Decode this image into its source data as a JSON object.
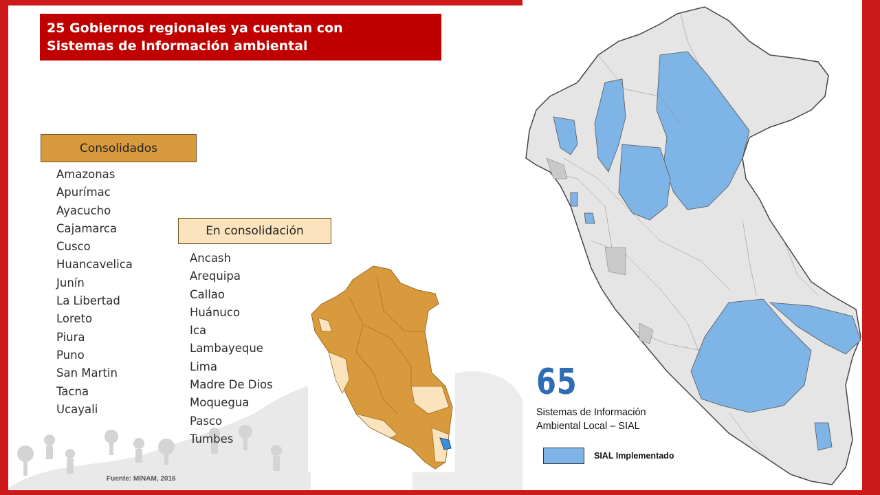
{
  "title": {
    "line1": "25 Gobiernos regionales ya cuentan con",
    "line2": "Sistemas de Información ambiental"
  },
  "consolidados": {
    "label": "Consolidados",
    "items": [
      "Amazonas",
      "Apurímac",
      "Ayacucho",
      "Cajamarca",
      "Cusco",
      "Huancavelica",
      "Junín",
      "La Libertad",
      "Loreto",
      "Piura",
      "Puno",
      "San Martin",
      "Tacna",
      "Ucayali"
    ]
  },
  "en_consolidacion": {
    "label": "En consolidación",
    "items": [
      "Ancash",
      "Arequipa",
      "Callao",
      "Huánuco",
      "Ica",
      "Lambayeque",
      "Lima",
      "Madre De Dios",
      "Moquegua",
      "Pasco",
      "Tumbes"
    ]
  },
  "source": "Fuente: MINAM, 2016",
  "sial": {
    "count": "65",
    "desc_line1": "Sistemas de Información",
    "desc_line2": "Ambiental Local – SIAL",
    "legend_label": "SIAL Implementado"
  },
  "colors": {
    "frame_red": "#cc1a1a",
    "title_bg": "#c00000",
    "consolidado": "#d89a3c",
    "en_consolidacion": "#fbe4bd",
    "sial_blue": "#7fb4e6",
    "count_blue": "#2e6db5"
  }
}
